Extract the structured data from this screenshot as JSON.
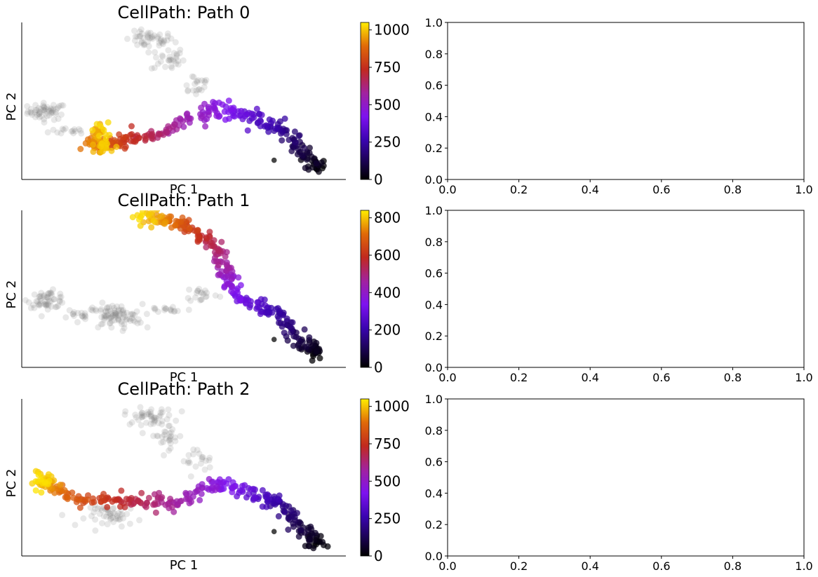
{
  "figure": {
    "background": "#ffffff"
  },
  "chart_data": [
    {
      "type": "scatter",
      "title": "CellPath: Path 0",
      "xlabel": "PC 1",
      "ylabel": "PC 2",
      "axes_ticks": false,
      "colormap": "gnuplot",
      "background_color": "#808080",
      "colorbar": {
        "range": [
          0,
          1050
        ],
        "ticks": [
          "0",
          "250",
          "500",
          "750",
          "1000"
        ],
        "tick_values": [
          0,
          250,
          500,
          750,
          1000
        ]
      },
      "path_points": [
        [
          8.3,
          0.2,
          0
        ],
        [
          8.1,
          0.5,
          40
        ],
        [
          7.6,
          1.0,
          90
        ],
        [
          7.1,
          1.9,
          160
        ],
        [
          6.5,
          2.6,
          240
        ],
        [
          5.8,
          2.9,
          300
        ],
        [
          4.9,
          3.3,
          380
        ],
        [
          4.1,
          3.6,
          440
        ],
        [
          3.3,
          3.3,
          500
        ],
        [
          2.3,
          2.6,
          560
        ],
        [
          1.4,
          2.1,
          640
        ],
        [
          0.5,
          1.9,
          720
        ],
        [
          -0.3,
          1.6,
          780
        ],
        [
          -0.9,
          1.4,
          840
        ],
        [
          -1.5,
          1.4,
          900
        ],
        [
          -1.2,
          2.2,
          960
        ],
        [
          -0.8,
          1.1,
          1000
        ],
        [
          -1.0,
          2.6,
          1030
        ]
      ],
      "background_clusters": [
        [
          -3.4,
          3.4,
          0.7,
          0.4,
          55
        ],
        [
          1.0,
          7.5,
          0.9,
          0.4,
          45
        ],
        [
          1.8,
          6.4,
          0.6,
          0.6,
          30
        ],
        [
          3.0,
          5.0,
          0.6,
          0.6,
          20
        ],
        [
          -2.2,
          2.3,
          0.9,
          0.2,
          15
        ]
      ],
      "outlier": [
        6.4,
        0.6
      ],
      "xlim": [
        -4.5,
        9.5
      ],
      "ylim": [
        -0.5,
        8.5
      ]
    },
    {
      "type": "scatter",
      "title": "CellPath: Path 1",
      "xlabel": "PC 1",
      "ylabel": "PC 2",
      "axes_ticks": false,
      "colormap": "gnuplot",
      "background_color": "#808080",
      "colorbar": {
        "range": [
          0,
          840
        ],
        "ticks": [
          "0",
          "200",
          "400",
          "600",
          "800"
        ],
        "tick_values": [
          0,
          200,
          400,
          600,
          800
        ]
      },
      "path_points": [
        [
          8.3,
          0.2,
          0
        ],
        [
          8.1,
          0.5,
          30
        ],
        [
          7.6,
          1.0,
          70
        ],
        [
          7.1,
          1.9,
          130
        ],
        [
          6.5,
          2.6,
          190
        ],
        [
          5.8,
          2.9,
          240
        ],
        [
          4.9,
          3.3,
          300
        ],
        [
          4.5,
          4.3,
          360
        ],
        [
          4.3,
          4.9,
          420
        ],
        [
          4.1,
          5.8,
          480
        ],
        [
          3.7,
          6.6,
          540
        ],
        [
          3.1,
          7.1,
          600
        ],
        [
          2.5,
          7.6,
          660
        ],
        [
          1.9,
          7.9,
          720
        ],
        [
          1.2,
          8.1,
          780
        ],
        [
          0.5,
          8.1,
          830
        ]
      ],
      "background_clusters": [
        [
          -3.4,
          3.4,
          0.7,
          0.4,
          55
        ],
        [
          -0.5,
          2.4,
          1.0,
          0.6,
          90
        ],
        [
          1.8,
          2.8,
          0.9,
          0.2,
          15
        ],
        [
          3.3,
          3.7,
          0.6,
          0.4,
          20
        ],
        [
          -2.0,
          2.6,
          0.8,
          0.3,
          15
        ]
      ],
      "outlier": [
        6.4,
        1.1
      ],
      "xlim": [
        -4.5,
        9.5
      ],
      "ylim": [
        -0.5,
        8.5
      ]
    },
    {
      "type": "scatter",
      "title": "CellPath: Path 2",
      "xlabel": "PC 1",
      "ylabel": "PC 2",
      "axes_ticks": false,
      "colormap": "gnuplot",
      "background_color": "#808080",
      "colorbar": {
        "range": [
          0,
          1050
        ],
        "ticks": [
          "0",
          "250",
          "500",
          "750",
          "1000"
        ],
        "tick_values": [
          0,
          250,
          500,
          750,
          1000
        ]
      },
      "path_points": [
        [
          8.3,
          0.2,
          0
        ],
        [
          8.1,
          0.5,
          40
        ],
        [
          7.6,
          1.0,
          90
        ],
        [
          7.1,
          1.9,
          160
        ],
        [
          6.5,
          2.6,
          240
        ],
        [
          5.8,
          2.9,
          300
        ],
        [
          4.9,
          3.3,
          380
        ],
        [
          4.1,
          3.6,
          440
        ],
        [
          3.3,
          3.3,
          500
        ],
        [
          2.3,
          2.6,
          560
        ],
        [
          1.4,
          2.5,
          620
        ],
        [
          0.5,
          2.6,
          680
        ],
        [
          -0.6,
          2.6,
          740
        ],
        [
          -1.8,
          2.7,
          810
        ],
        [
          -2.8,
          3.0,
          880
        ],
        [
          -3.3,
          3.7,
          950
        ],
        [
          -3.6,
          3.9,
          1010
        ],
        [
          -3.7,
          3.5,
          1040
        ]
      ],
      "background_clusters": [
        [
          1.0,
          7.5,
          0.9,
          0.4,
          45
        ],
        [
          1.8,
          6.4,
          0.6,
          0.6,
          30
        ],
        [
          3.0,
          5.0,
          0.6,
          0.6,
          20
        ],
        [
          -0.5,
          1.8,
          1.0,
          0.5,
          50
        ]
      ],
      "outlier": [
        6.4,
        0.9
      ],
      "xlim": [
        -4.5,
        9.5
      ],
      "ylim": [
        -0.5,
        8.5
      ]
    },
    {
      "type": "scatter",
      "title": "",
      "xlabel": "",
      "ylabel": "",
      "empty": true,
      "xlim": [
        0,
        1
      ],
      "ylim": [
        0,
        1
      ],
      "xticks": [
        "0.0",
        "0.2",
        "0.4",
        "0.6",
        "0.8",
        "1.0"
      ],
      "yticks": [
        "0.0",
        "0.2",
        "0.4",
        "0.6",
        "0.8",
        "1.0"
      ]
    },
    {
      "type": "scatter",
      "title": "",
      "xlabel": "",
      "ylabel": "",
      "empty": true,
      "xlim": [
        0,
        1
      ],
      "ylim": [
        0,
        1
      ],
      "xticks": [
        "0.0",
        "0.2",
        "0.4",
        "0.6",
        "0.8",
        "1.0"
      ],
      "yticks": [
        "0.0",
        "0.2",
        "0.4",
        "0.6",
        "0.8",
        "1.0"
      ]
    },
    {
      "type": "scatter",
      "title": "",
      "xlabel": "",
      "ylabel": "",
      "empty": true,
      "xlim": [
        0,
        1
      ],
      "ylim": [
        0,
        1
      ],
      "xticks": [
        "0.0",
        "0.2",
        "0.4",
        "0.6",
        "0.8",
        "1.0"
      ],
      "yticks": [
        "0.0",
        "0.2",
        "0.4",
        "0.6",
        "0.8",
        "1.0"
      ]
    }
  ]
}
